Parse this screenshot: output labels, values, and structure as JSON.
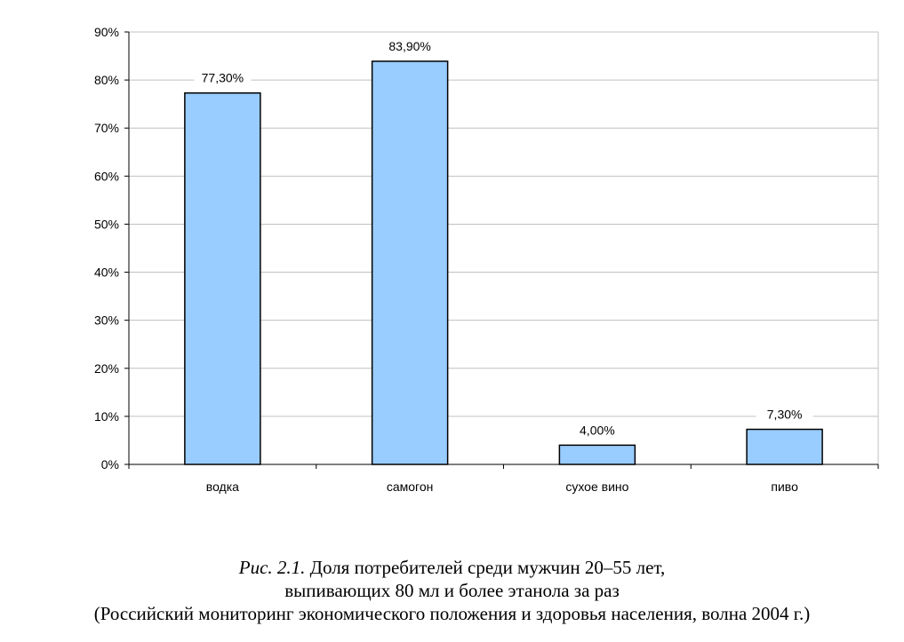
{
  "chart_data": {
    "type": "bar",
    "categories": [
      "водка",
      "самогон",
      "сухое вино",
      "пиво"
    ],
    "values": [
      77.3,
      83.9,
      4.0,
      7.3
    ],
    "data_labels": [
      "77,30%",
      "83,90%",
      "4,00%",
      "7,30%"
    ],
    "ylim": [
      0,
      90
    ],
    "yticks": [
      0,
      10,
      20,
      30,
      40,
      50,
      60,
      70,
      80,
      90
    ],
    "ytick_labels": [
      "0%",
      "10%",
      "20%",
      "30%",
      "40%",
      "50%",
      "60%",
      "70%",
      "80%",
      "90%"
    ],
    "grid": true,
    "bar_color": "#99ccff",
    "grid_color": "#c0c0c0"
  },
  "caption": {
    "fig_label": "Рис. 2.1.",
    "line1": "Доля потребителей среди мужчин 20–55 лет,",
    "line2": "выпивающих 80 мл и более этанола за раз",
    "line3": "(Российский мониторинг экономического положения и здоровья населения, волна 2004 г.)"
  }
}
